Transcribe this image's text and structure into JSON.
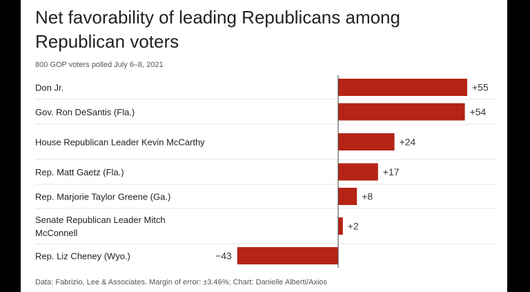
{
  "chart_data": {
    "type": "bar",
    "orientation": "horizontal",
    "title": "Net favorability of leading Republicans among Republican voters",
    "subtitle": "800 GOP voters polled July 6–8, 2021",
    "categories": [
      "Don Jr.",
      "Gov. Ron DeSantis (Fla.)",
      "House Republican Leader Kevin McCarthy",
      "Rep. Matt Gaetz (Fla.)",
      "Rep. Marjorie Taylor Greene (Ga.)",
      "Senate Republican Leader Mitch McConnell",
      "Rep. Liz Cheney (Wyo.)"
    ],
    "values": [
      55,
      54,
      24,
      17,
      8,
      2,
      -43
    ],
    "value_labels": [
      "+55",
      "+54",
      "+24",
      "+17",
      "+8",
      "+2",
      "−43"
    ],
    "bar_color": "#b52415",
    "xlim": [
      -60,
      60
    ],
    "grid": false,
    "footer": "Data: Fabrizio, Lee & Associates. Margin of error: ±3.46%; Chart: Danielle Alberti/Axios"
  }
}
